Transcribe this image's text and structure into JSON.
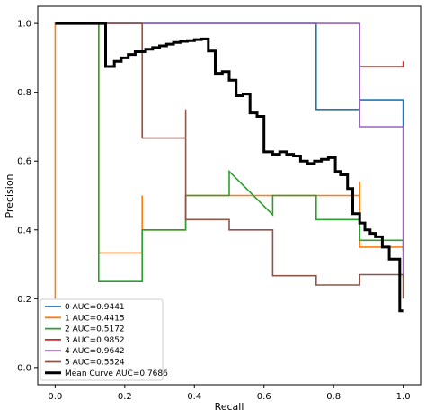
{
  "chart_data": {
    "type": "line",
    "title": "",
    "xlabel": "Recall",
    "ylabel": "Precision",
    "xlim": [
      -0.05,
      1.05
    ],
    "ylim": [
      -0.05,
      1.05
    ],
    "xticks": [
      0.0,
      0.2,
      0.4,
      0.6,
      0.8,
      1.0
    ],
    "yticks": [
      0.0,
      0.2,
      0.4,
      0.6,
      0.8,
      1.0
    ],
    "tick_labels": [
      "0.0",
      "0.2",
      "0.4",
      "0.6",
      "0.8",
      "1.0"
    ],
    "grid": false,
    "legend_position": "lower-left",
    "series": [
      {
        "name": "0 AUC=0.9441",
        "color": "#1f77b4",
        "x": [
          0.125,
          0.125,
          0.25,
          0.375,
          0.5,
          0.625,
          0.75,
          0.75,
          0.875,
          0.875,
          1.0,
          1.0
        ],
        "y": [
          1.0,
          1.0,
          1.0,
          1.0,
          1.0,
          1.0,
          1.0,
          0.75,
          0.75,
          0.778,
          0.778,
          0.7
        ]
      },
      {
        "name": "1 AUC=0.4415",
        "color": "#ff7f0e",
        "x": [
          0.0,
          0.0,
          0.125,
          0.125,
          0.25,
          0.25,
          0.25,
          0.375,
          0.375,
          0.5,
          0.625,
          0.625,
          0.75,
          0.875,
          0.875,
          0.875,
          1.0,
          1.0
        ],
        "y": [
          0.2,
          1.0,
          1.0,
          0.333,
          0.333,
          0.5,
          0.4,
          0.4,
          0.5,
          0.5,
          0.5,
          0.5,
          0.5,
          0.5,
          0.54,
          0.35,
          0.35,
          0.34
        ]
      },
      {
        "name": "2 AUC=0.5172",
        "color": "#2ca02c",
        "x": [
          0.125,
          0.125,
          0.25,
          0.25,
          0.375,
          0.375,
          0.5,
          0.5,
          0.625,
          0.625,
          0.75,
          0.75,
          0.875,
          0.875,
          1.0,
          1.0
        ],
        "y": [
          1.0,
          0.25,
          0.25,
          0.4,
          0.4,
          0.5,
          0.5,
          0.57,
          0.444,
          0.5,
          0.5,
          0.43,
          0.43,
          0.37,
          0.37,
          0.34
        ]
      },
      {
        "name": "3 AUC=0.9852",
        "color": "#d62728",
        "x": [
          0.875,
          0.875,
          1.0,
          1.0
        ],
        "y": [
          1.0,
          0.875,
          0.875,
          0.89
        ]
      },
      {
        "name": "4 AUC=0.9642",
        "color": "#9467bd",
        "x": [
          0.125,
          0.875,
          0.875,
          1.0,
          1.0
        ],
        "y": [
          1.0,
          1.0,
          0.7,
          0.7,
          0.26
        ]
      },
      {
        "name": "5 AUC=0.5524",
        "color": "#8c564b",
        "x": [
          0.125,
          0.25,
          0.25,
          0.375,
          0.375,
          0.375,
          0.5,
          0.5,
          0.625,
          0.625,
          0.75,
          0.75,
          0.875,
          0.875,
          1.0,
          1.0
        ],
        "y": [
          1.0,
          1.0,
          0.667,
          0.667,
          0.75,
          0.43,
          0.43,
          0.4,
          0.4,
          0.267,
          0.267,
          0.24,
          0.24,
          0.27,
          0.27,
          0.2
        ]
      },
      {
        "name": "Mean Curve AUC=0.7686",
        "color": "#000000",
        "x": [
          0.0,
          0.145,
          0.145,
          0.17,
          0.17,
          0.19,
          0.19,
          0.21,
          0.21,
          0.23,
          0.23,
          0.26,
          0.26,
          0.28,
          0.28,
          0.3,
          0.3,
          0.32,
          0.32,
          0.34,
          0.34,
          0.36,
          0.36,
          0.38,
          0.38,
          0.4,
          0.4,
          0.42,
          0.42,
          0.44,
          0.44,
          0.46,
          0.46,
          0.48,
          0.48,
          0.5,
          0.5,
          0.52,
          0.52,
          0.54,
          0.54,
          0.56,
          0.56,
          0.58,
          0.58,
          0.6,
          0.6,
          0.625,
          0.625,
          0.645,
          0.645,
          0.665,
          0.665,
          0.685,
          0.685,
          0.705,
          0.705,
          0.725,
          0.725,
          0.745,
          0.745,
          0.765,
          0.765,
          0.785,
          0.785,
          0.805,
          0.805,
          0.82,
          0.82,
          0.84,
          0.84,
          0.855,
          0.855,
          0.875,
          0.875,
          0.89,
          0.89,
          0.905,
          0.905,
          0.92,
          0.92,
          0.94,
          0.94,
          0.96,
          0.96,
          0.975,
          0.975,
          0.99,
          0.99,
          1.0,
          1.0
        ],
        "y": [
          1.0,
          1.0,
          0.875,
          0.875,
          0.89,
          0.89,
          0.9,
          0.9,
          0.91,
          0.91,
          0.918,
          0.918,
          0.925,
          0.925,
          0.93,
          0.93,
          0.935,
          0.935,
          0.94,
          0.94,
          0.945,
          0.945,
          0.948,
          0.948,
          0.95,
          0.95,
          0.953,
          0.953,
          0.955,
          0.955,
          0.92,
          0.92,
          0.855,
          0.855,
          0.86,
          0.86,
          0.835,
          0.835,
          0.79,
          0.79,
          0.795,
          0.795,
          0.74,
          0.74,
          0.73,
          0.73,
          0.627,
          0.627,
          0.62,
          0.62,
          0.627,
          0.627,
          0.62,
          0.62,
          0.615,
          0.615,
          0.6,
          0.6,
          0.593,
          0.593,
          0.6,
          0.6,
          0.605,
          0.605,
          0.61,
          0.61,
          0.57,
          0.57,
          0.56,
          0.56,
          0.52,
          0.52,
          0.447,
          0.447,
          0.42,
          0.42,
          0.4,
          0.4,
          0.39,
          0.39,
          0.38,
          0.38,
          0.35,
          0.35,
          0.315,
          0.315,
          0.315,
          0.315,
          0.165,
          0.165,
          0.165
        ]
      }
    ]
  }
}
